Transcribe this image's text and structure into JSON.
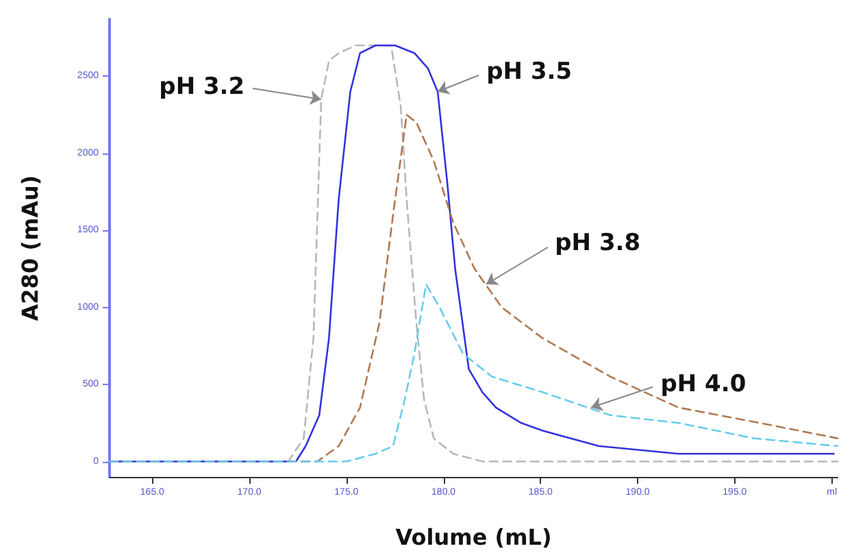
{
  "chart_data": {
    "type": "line",
    "xlabel": "Volume (mL)",
    "ylabel": "A280 (mAu)",
    "xlim": [
      162.8,
      200.3
    ],
    "xticks": [
      {
        "value": 165,
        "label": "165.0"
      },
      {
        "value": 170,
        "label": "170.0"
      },
      {
        "value": 175,
        "label": "175.0"
      },
      {
        "value": 180,
        "label": "180.0"
      },
      {
        "value": 185,
        "label": "185.0"
      },
      {
        "value": 190,
        "label": "190.0"
      },
      {
        "value": 195,
        "label": "195.0"
      },
      {
        "value": 200,
        "label": "ml"
      }
    ],
    "ylim": [
      -100,
      2870
    ],
    "yticks": [
      0,
      500,
      1000,
      1500,
      2000,
      2500
    ],
    "marker": "none",
    "series": [
      {
        "color": "#b8b8b8",
        "line_style": "dashed",
        "x": [
          162.8,
          170,
          172,
          172.8,
          173.3,
          173.7,
          174.1,
          174.6,
          175.5,
          176.5,
          177.3,
          177.8,
          178.1,
          178.6,
          179.0,
          179.5,
          180.5,
          182,
          185,
          190,
          195,
          200.3
        ],
        "values": [
          0,
          0,
          0,
          150,
          800,
          2350,
          2600,
          2650,
          2700,
          2700,
          2700,
          2300,
          1700,
          900,
          400,
          150,
          50,
          0,
          0,
          0,
          0,
          0
        ]
      },
      {
        "color": "#3333dd",
        "line_style": "solid",
        "x": [
          162.8,
          170,
          172.4,
          172.9,
          173.6,
          174.1,
          174.6,
          175.2,
          175.7,
          176.5,
          177.5,
          178.5,
          179.2,
          179.7,
          180.2,
          180.6,
          181.3,
          182,
          182.7,
          184,
          185.1,
          188,
          192.1,
          196,
          200.1
        ],
        "values": [
          0,
          0,
          0,
          100,
          300,
          800,
          1700,
          2400,
          2650,
          2700,
          2700,
          2650,
          2550,
          2400,
          1800,
          1250,
          600,
          450,
          350,
          250,
          200,
          100,
          50,
          50,
          50
        ]
      },
      {
        "color": "#b07850",
        "line_style": "dashed",
        "x": [
          162.8,
          172,
          173.5,
          174.6,
          175.7,
          176.7,
          177.4,
          178.1,
          178.6,
          179.5,
          180.5,
          181.6,
          183,
          185.1,
          188.6,
          192.1,
          196.3,
          200.3
        ],
        "values": [
          0,
          0,
          0,
          100,
          350,
          900,
          1600,
          2250,
          2200,
          1950,
          1550,
          1250,
          1000,
          800,
          550,
          350,
          250,
          150
        ]
      },
      {
        "color": "#66ccee",
        "line_style": "dashed",
        "x": [
          162.8,
          175,
          176.5,
          177.4,
          178.0,
          178.5,
          179.1,
          179.8,
          181,
          182.5,
          185.1,
          188.6,
          192.1,
          196,
          200.3
        ],
        "values": [
          0,
          0,
          50,
          100,
          400,
          700,
          1150,
          1000,
          700,
          550,
          450,
          300,
          250,
          150,
          100
        ]
      }
    ],
    "annotations": [
      {
        "text": "pH 3.2",
        "x": 173.7,
        "y": 2350
      },
      {
        "text": "pH 3.5",
        "x": 179.7,
        "y": 2400
      },
      {
        "text": "pH 3.8",
        "x": 182.2,
        "y": 1150
      },
      {
        "text": "pH 4.0",
        "x": 187.6,
        "y": 350
      }
    ]
  }
}
